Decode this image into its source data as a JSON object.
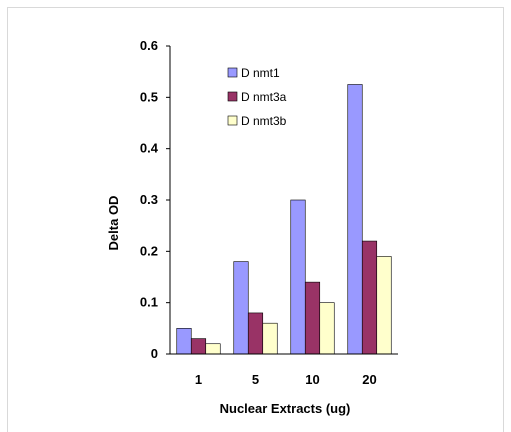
{
  "chart_data": {
    "type": "bar",
    "categories": [
      "1",
      "5",
      "10",
      "20"
    ],
    "series": [
      {
        "name": "D nmt1",
        "values": [
          0.05,
          0.18,
          0.3,
          0.525
        ],
        "color": "#9999ff"
      },
      {
        "name": "D nmt3a",
        "values": [
          0.03,
          0.08,
          0.14,
          0.22
        ],
        "color": "#993366"
      },
      {
        "name": "D nmt3b",
        "values": [
          0.02,
          0.06,
          0.1,
          0.19
        ],
        "color": "#ffffcc"
      }
    ],
    "ylim": [
      0,
      0.6
    ],
    "yticks": [
      "0",
      "0.1",
      "0.2",
      "0.3",
      "0.4",
      "0.5",
      "0.6"
    ],
    "xlabel": "Nuclear Extracts (ug)",
    "ylabel": "Delta OD",
    "legend_position": "top-left inside plot",
    "grid": false
  }
}
